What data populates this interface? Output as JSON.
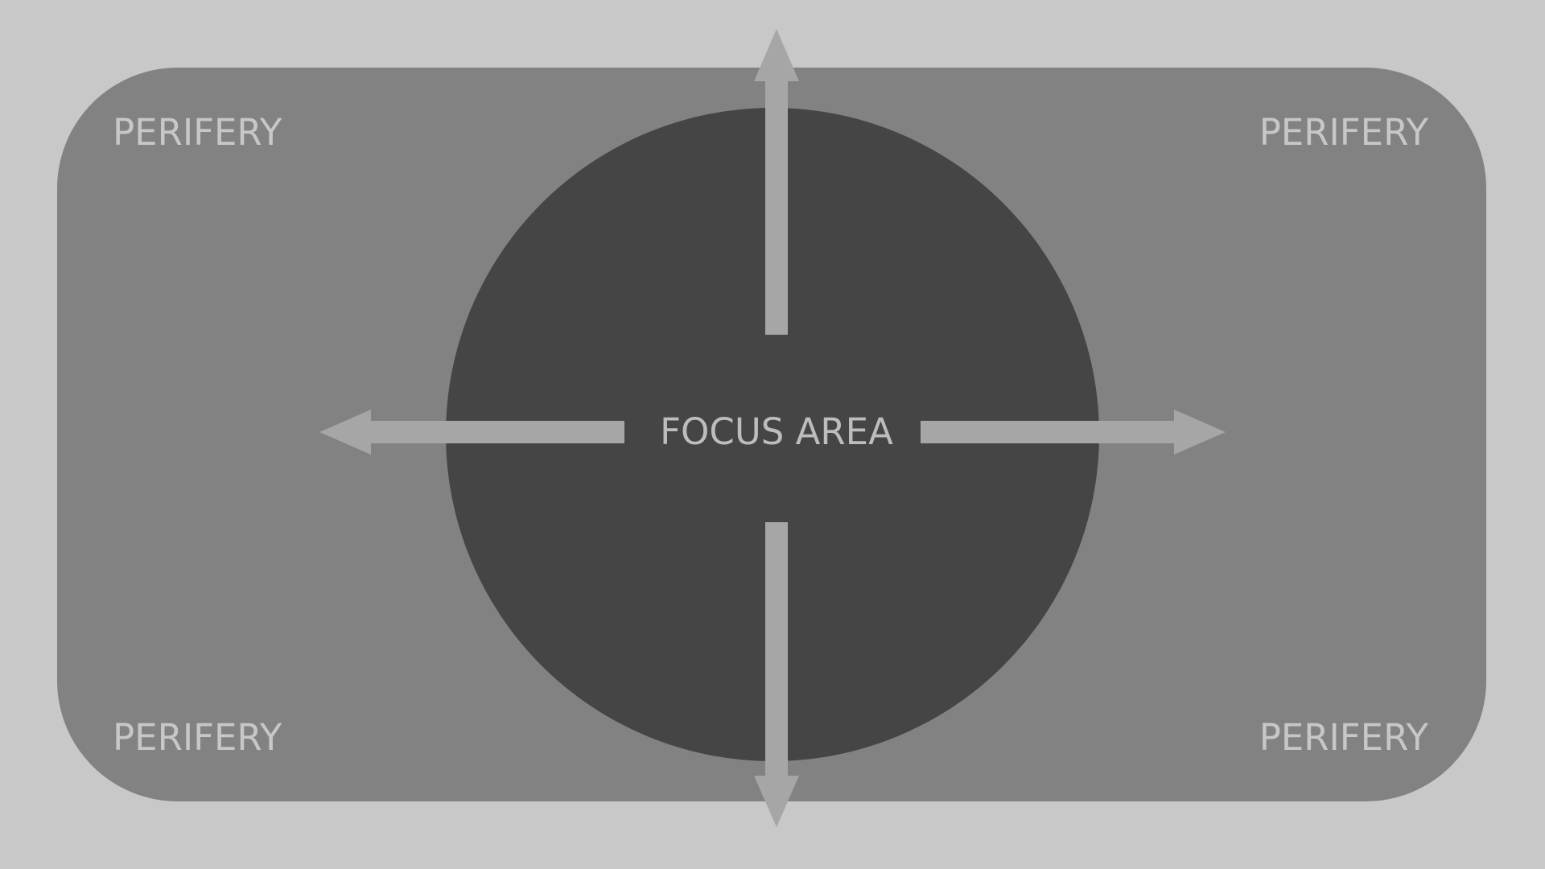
{
  "diagram": {
    "center_label": "FOCUS AREA",
    "corner_labels": {
      "top_left": "PERIFERY",
      "top_right": "PERIFERY",
      "bottom_left": "PERIFERY",
      "bottom_right": "PERIFERY"
    },
    "arrows": [
      "up",
      "down",
      "left",
      "right"
    ]
  },
  "colors": {
    "background": "#c8c8c8",
    "periphery_region": "#828282",
    "focus_area": "#454545",
    "arrows": "#a6a6a6",
    "periphery_text": "#c7c7c7",
    "focus_text": "#bdbdbd"
  }
}
